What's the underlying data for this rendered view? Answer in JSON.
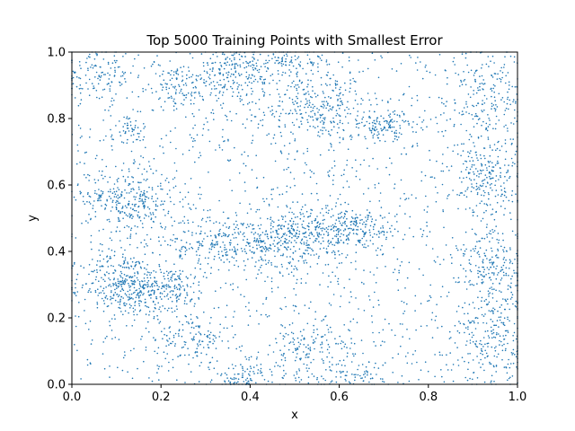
{
  "chart_data": {
    "type": "scatter",
    "title": "Top 5000 Training Points with Smallest Error",
    "xlabel": "x",
    "ylabel": "y",
    "xlim": [
      0,
      1
    ],
    "ylim": [
      0,
      1
    ],
    "xticks": [
      "0.0",
      "0.2",
      "0.4",
      "0.6",
      "0.8",
      "1.0"
    ],
    "yticks": [
      "0.0",
      "0.2",
      "0.4",
      "0.6",
      "0.8",
      "1.0"
    ],
    "grid": false,
    "point_color": "#1f77b4",
    "n_points": 5000,
    "series": [
      {
        "clusters": [
          {
            "x": 0.12,
            "y": 0.3,
            "sx": 0.05,
            "sy": 0.05,
            "weight": 0.09
          },
          {
            "x": 0.22,
            "y": 0.29,
            "sx": 0.04,
            "sy": 0.03,
            "weight": 0.04
          },
          {
            "x": 0.13,
            "y": 0.55,
            "sx": 0.05,
            "sy": 0.05,
            "weight": 0.07
          },
          {
            "x": 0.37,
            "y": 0.43,
            "sx": 0.08,
            "sy": 0.04,
            "weight": 0.08
          },
          {
            "x": 0.52,
            "y": 0.45,
            "sx": 0.06,
            "sy": 0.05,
            "weight": 0.07
          },
          {
            "x": 0.63,
            "y": 0.47,
            "sx": 0.06,
            "sy": 0.03,
            "weight": 0.05
          },
          {
            "x": 0.55,
            "y": 0.83,
            "sx": 0.07,
            "sy": 0.05,
            "weight": 0.07
          },
          {
            "x": 0.7,
            "y": 0.78,
            "sx": 0.04,
            "sy": 0.02,
            "weight": 0.03
          },
          {
            "x": 0.36,
            "y": 0.93,
            "sx": 0.06,
            "sy": 0.04,
            "weight": 0.05
          },
          {
            "x": 0.48,
            "y": 0.97,
            "sx": 0.06,
            "sy": 0.02,
            "weight": 0.03
          },
          {
            "x": 0.24,
            "y": 0.88,
            "sx": 0.03,
            "sy": 0.03,
            "weight": 0.02
          },
          {
            "x": 0.06,
            "y": 0.93,
            "sx": 0.04,
            "sy": 0.04,
            "weight": 0.03
          },
          {
            "x": 0.13,
            "y": 0.77,
            "sx": 0.02,
            "sy": 0.02,
            "weight": 0.01
          },
          {
            "x": 0.93,
            "y": 0.85,
            "sx": 0.04,
            "sy": 0.08,
            "weight": 0.05
          },
          {
            "x": 0.93,
            "y": 0.62,
            "sx": 0.04,
            "sy": 0.06,
            "weight": 0.05
          },
          {
            "x": 0.95,
            "y": 0.35,
            "sx": 0.04,
            "sy": 0.06,
            "weight": 0.05
          },
          {
            "x": 0.95,
            "y": 0.13,
            "sx": 0.04,
            "sy": 0.07,
            "weight": 0.05
          },
          {
            "x": 0.53,
            "y": 0.1,
            "sx": 0.05,
            "sy": 0.05,
            "weight": 0.04
          },
          {
            "x": 0.27,
            "y": 0.13,
            "sx": 0.04,
            "sy": 0.04,
            "weight": 0.03
          },
          {
            "x": 0.38,
            "y": 0.02,
            "sx": 0.03,
            "sy": 0.02,
            "weight": 0.02
          },
          {
            "x": 0.64,
            "y": 0.03,
            "sx": 0.03,
            "sy": 0.02,
            "weight": 0.01
          }
        ],
        "uniform_fraction": 0.3
      }
    ]
  }
}
